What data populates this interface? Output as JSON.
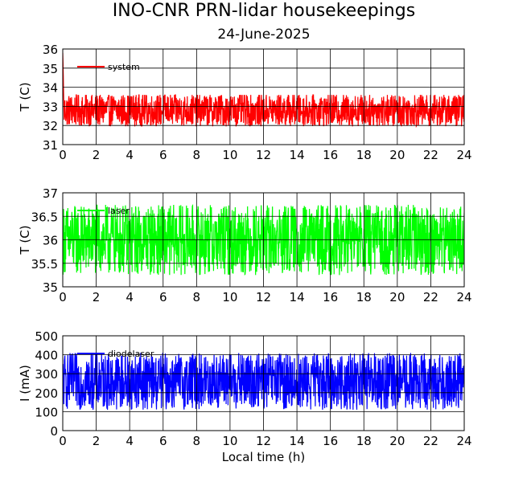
{
  "figure": {
    "title": "INO-CNR PRN-lidar housekeepings",
    "subtitle": "24-June-2025"
  },
  "chart_data": [
    {
      "type": "line",
      "ylabel": "T (C)",
      "xlabel": "",
      "xlim": [
        0,
        24
      ],
      "ylim": [
        31,
        36
      ],
      "xticks": [
        0,
        2,
        4,
        6,
        8,
        10,
        12,
        14,
        16,
        18,
        20,
        22,
        24
      ],
      "yticks": [
        31,
        32,
        33,
        34,
        35,
        36
      ],
      "grid": true,
      "legend_position": "top-left",
      "series": [
        {
          "name": "system",
          "color": "#ff0000",
          "pattern": "noisy",
          "start_values": [
            35.8,
            35.3,
            34.6,
            33.8
          ],
          "center": 32.8,
          "spread": 0.85,
          "low": 31.6,
          "high": 33.6,
          "x_range": [
            0,
            24
          ]
        }
      ]
    },
    {
      "type": "line",
      "ylabel": "T (C)",
      "xlabel": "",
      "xlim": [
        0,
        24
      ],
      "ylim": [
        35,
        37
      ],
      "xticks": [
        0,
        2,
        4,
        6,
        8,
        10,
        12,
        14,
        16,
        18,
        20,
        22,
        24
      ],
      "yticks": [
        35,
        35.5,
        36,
        36.5,
        37
      ],
      "ytick_labels": [
        "35",
        "35.5",
        "36",
        "36.5",
        "37"
      ],
      "grid": true,
      "legend_position": "top-left",
      "series": [
        {
          "name": "laser",
          "color": "#00ff00",
          "pattern": "noisy",
          "center": 36.0,
          "spread": 0.75,
          "low": 35.2,
          "high": 36.85,
          "x_range": [
            0,
            24
          ]
        }
      ]
    },
    {
      "type": "line",
      "ylabel": "I (mA)",
      "xlabel": "Local time (h)",
      "xlim": [
        0,
        24
      ],
      "ylim": [
        0,
        500
      ],
      "xticks": [
        0,
        2,
        4,
        6,
        8,
        10,
        12,
        14,
        16,
        18,
        20,
        22,
        24
      ],
      "yticks": [
        0,
        100,
        200,
        300,
        400,
        500
      ],
      "grid": true,
      "legend_position": "top-left",
      "series": [
        {
          "name": "diodelaser",
          "color": "#0000ff",
          "pattern": "noisy",
          "center": 260,
          "spread": 150,
          "low": 100,
          "high": 445,
          "x_range": [
            0,
            24
          ]
        }
      ]
    }
  ]
}
